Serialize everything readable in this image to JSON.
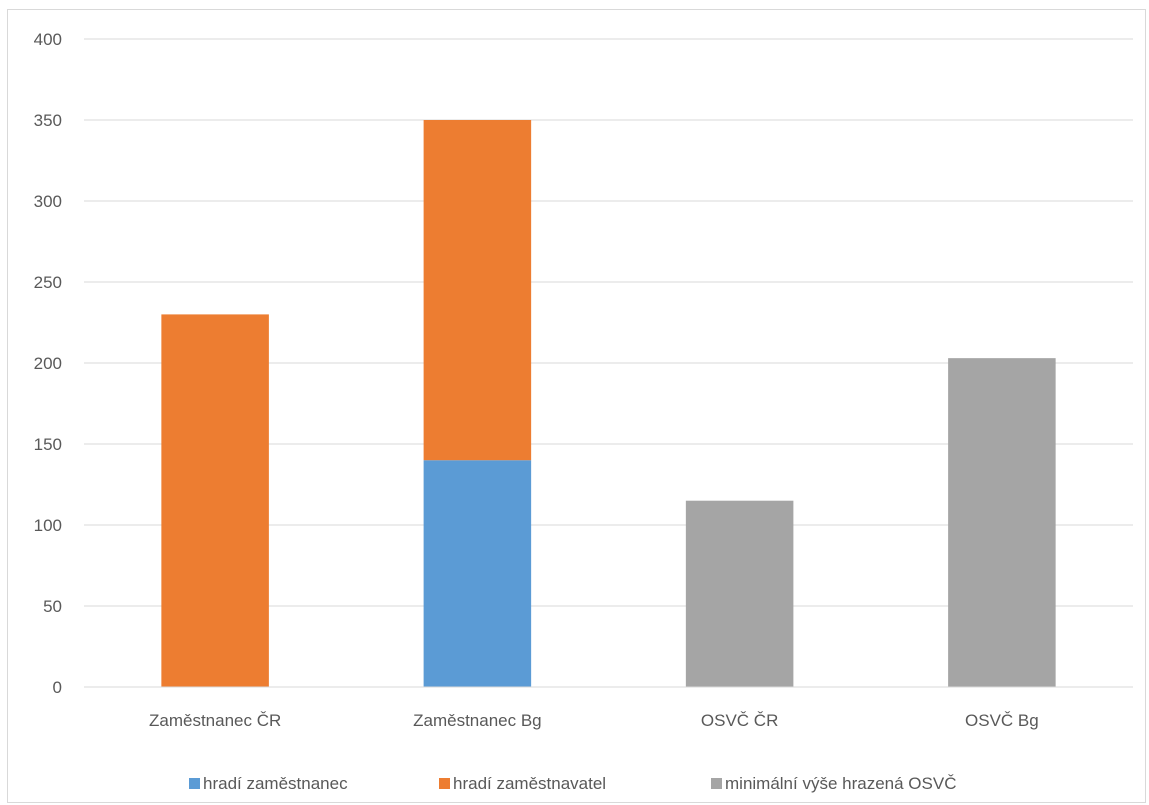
{
  "chart_data": {
    "type": "bar",
    "stacked": true,
    "title": "",
    "xlabel": "",
    "ylabel": "",
    "ylim": [
      0,
      400
    ],
    "yticks": [
      0,
      50,
      100,
      150,
      200,
      250,
      300,
      350,
      400
    ],
    "grid": true,
    "legend_position": "bottom",
    "categories": [
      "Zaměstnanec ČR",
      "Zaměstnanec Bg",
      "OSVČ ČR",
      "OSVČ Bg"
    ],
    "series": [
      {
        "name": "hradí zaměstnanec",
        "color": "#5b9bd5",
        "values": [
          0,
          140,
          0,
          0
        ]
      },
      {
        "name": "hradí zaměstnavatel",
        "color": "#ed7d31",
        "values": [
          230,
          210,
          0,
          0
        ]
      },
      {
        "name": "minimální výše hrazená OSVČ",
        "color": "#a5a5a5",
        "values": [
          0,
          0,
          115,
          203
        ]
      }
    ]
  }
}
